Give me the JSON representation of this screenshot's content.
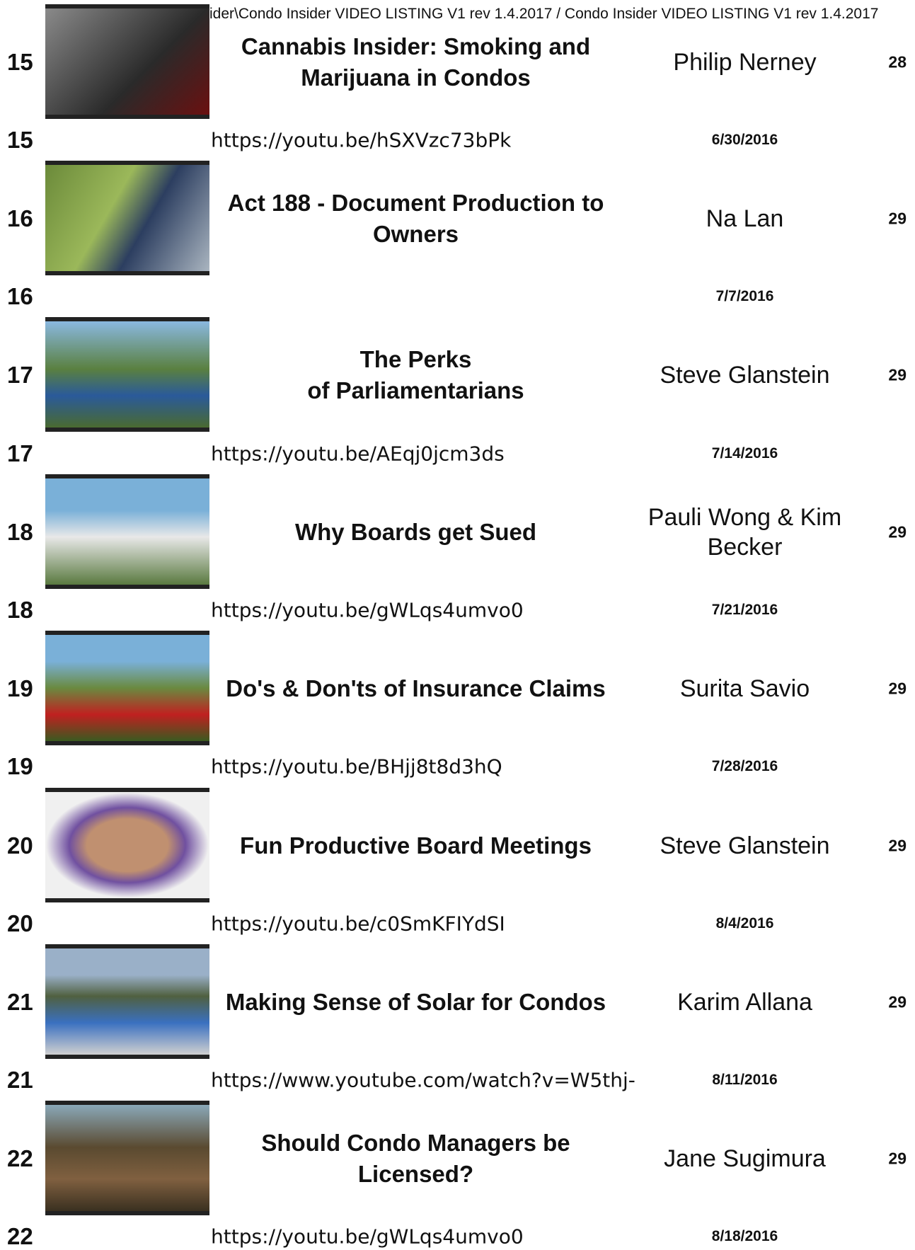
{
  "header": {
    "text": "ider\\Condo Insider VIDEO LISTING V1 rev 1.4.2017 / Condo Insider VIDEO LISTING V1 rev 1.4.2017"
  },
  "entries": [
    {
      "number": 15,
      "title": [
        "Cannabis Insider: Smoking and",
        "Marijuana in Condos"
      ],
      "presenter": [
        "Philip Nerney"
      ],
      "duration": 28,
      "url": "https://youtu.be/hSXVzc73bPk",
      "date": "6/30/2016"
    },
    {
      "number": 16,
      "title": [
        "Act 188 - Document Production to",
        "Owners"
      ],
      "presenter": [
        "Na Lan"
      ],
      "duration": 29,
      "date": "7/7/2016"
    },
    {
      "number": 17,
      "title": [
        "The Perks",
        "of Parliamentarians"
      ],
      "presenter": [
        "Steve Glanstein"
      ],
      "duration": 29,
      "url": "https://youtu.be/AEqj0jcm3ds",
      "date": "7/14/2016"
    },
    {
      "number": 18,
      "title": [
        "Why Boards get Sued"
      ],
      "presenter": [
        "Pauli Wong & Kim",
        "Becker"
      ],
      "duration": 29,
      "url": "https://youtu.be/gWLqs4umvo0",
      "date": "7/21/2016"
    },
    {
      "number": 19,
      "title": [
        "Do's & Don'ts of Insurance Claims"
      ],
      "presenter": [
        "Surita Savio"
      ],
      "duration": 29,
      "url": "https://youtu.be/BHjj8t8d3hQ",
      "date": "7/28/2016"
    },
    {
      "number": 20,
      "title": [
        "Fun Productive Board Meetings"
      ],
      "presenter": [
        "Steve Glanstein"
      ],
      "duration": 29,
      "url": "https://youtu.be/c0SmKFIYdSI",
      "date": "8/4/2016"
    },
    {
      "number": 21,
      "title": [
        "Making Sense of Solar for Condos"
      ],
      "presenter": [
        "Karim Allana"
      ],
      "duration": 29,
      "url": "https://www.youtube.com/watch?v=W5thj-",
      "date": "8/11/2016"
    },
    {
      "number": 22,
      "title": [
        "Should Condo Managers be",
        "Licensed?"
      ],
      "presenter": [
        "Jane Sugimura"
      ],
      "duration": 29,
      "url": "https://youtu.be/gWLqs4umvo0",
      "date": "8/18/2016"
    }
  ]
}
